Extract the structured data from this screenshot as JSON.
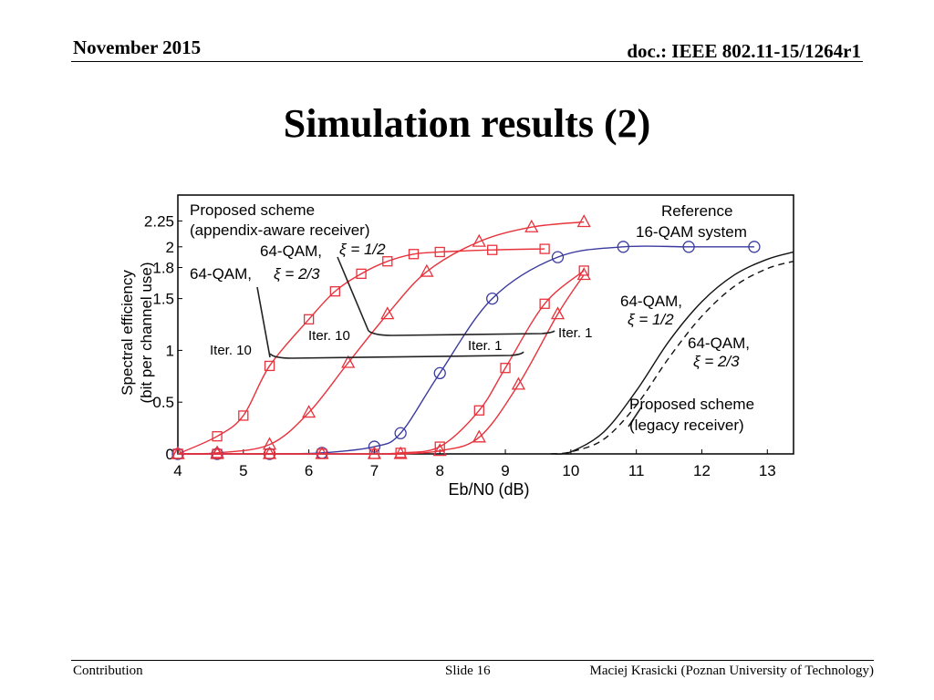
{
  "header": {
    "date": "November 2015",
    "doc": "doc.: IEEE 802.11-15/1264r1"
  },
  "title": "Simulation results (2)",
  "footer": {
    "left": "Contribution",
    "center": "Slide 16",
    "right": "Maciej Krasicki (Poznan University of Technology)"
  },
  "colors": {
    "red": "#e8323c",
    "blue": "#3a3aa0",
    "black": "#111111"
  },
  "chart_data": {
    "type": "line",
    "xlabel": "Eb/N0 (dB)",
    "ylabel_line1": "Spectral efficiency",
    "ylabel_line2": "(bit per channel use)",
    "xlim": [
      4,
      13.4
    ],
    "ylim": [
      0,
      2.5
    ],
    "x_ticks": [
      4,
      5,
      6,
      7,
      8,
      9,
      10,
      11,
      12,
      13
    ],
    "y_ticks": [
      0,
      0.5,
      1,
      1.5,
      1.8,
      2,
      2.25
    ],
    "y_tick_labels": [
      "0",
      "0.5",
      "1",
      "1.5",
      "1.8",
      "2",
      "2.25"
    ],
    "grid": false,
    "series": [
      {
        "color": "red",
        "marker": "square",
        "style": "solid",
        "x": [
          4,
          4.6,
          5,
          5.4,
          6,
          6.4,
          6.8,
          7.2,
          7.6,
          8,
          8.8,
          9.6
        ],
        "y": [
          0,
          0.17,
          0.37,
          0.85,
          1.3,
          1.57,
          1.74,
          1.86,
          1.93,
          1.95,
          1.97,
          1.98
        ]
      },
      {
        "color": "red",
        "marker": "triangle",
        "style": "solid",
        "x": [
          4,
          4.6,
          5.4,
          6,
          6.6,
          7.2,
          7.8,
          8.6,
          9.4,
          10.2
        ],
        "y": [
          0,
          0.01,
          0.09,
          0.4,
          0.88,
          1.35,
          1.76,
          2.05,
          2.19,
          2.24
        ]
      },
      {
        "color": "blue",
        "marker": "circle",
        "style": "solid",
        "x": [
          4,
          4.6,
          5.4,
          6.2,
          7,
          7.4,
          8,
          8.8,
          9.8,
          10.8,
          11.8,
          12.8
        ],
        "y": [
          0,
          0,
          0,
          0.01,
          0.07,
          0.2,
          0.78,
          1.5,
          1.9,
          2,
          2,
          2
        ]
      },
      {
        "color": "red",
        "marker": "square",
        "style": "solid",
        "x": [
          4,
          4.6,
          5.4,
          6.2,
          7,
          7.4,
          8,
          8.6,
          9,
          9.6,
          10.2
        ],
        "y": [
          0,
          0,
          0,
          0,
          0,
          0.01,
          0.07,
          0.42,
          0.83,
          1.45,
          1.77
        ]
      },
      {
        "color": "red",
        "marker": "triangle",
        "style": "solid",
        "x": [
          4,
          4.6,
          5.4,
          6.2,
          7,
          7.4,
          8,
          8.6,
          9.2,
          9.8,
          10.2
        ],
        "y": [
          0,
          0,
          0,
          0,
          0,
          0,
          0.03,
          0.16,
          0.67,
          1.35,
          1.73
        ]
      },
      {
        "color": "black",
        "marker": "none",
        "style": "solid",
        "x": [
          9.7,
          10,
          10.5,
          11,
          11.5,
          12,
          12.5,
          13,
          13.4
        ],
        "y": [
          0,
          0.02,
          0.21,
          0.61,
          1.09,
          1.47,
          1.73,
          1.88,
          1.95
        ]
      },
      {
        "color": "black",
        "marker": "none",
        "style": "dashed",
        "x": [
          9.7,
          10,
          10.5,
          11,
          11.5,
          12,
          12.5,
          13,
          13.4
        ],
        "y": [
          0,
          0.02,
          0.14,
          0.47,
          0.93,
          1.33,
          1.62,
          1.79,
          1.86
        ]
      }
    ],
    "annotations": {
      "proposed_aware_1": "Proposed scheme",
      "proposed_aware_2": "(appendix-aware receiver)",
      "reference_1": "Reference",
      "reference_2": "16-QAM system",
      "qam_half_left": "64-QAM,",
      "xi_half": "ξ = 1/2",
      "qam_twothirds_left": "64-QAM,",
      "xi_twothirds": "ξ = 2/3",
      "iter10_left": "Iter. 10",
      "iter10_mid": "Iter. 10",
      "iter1_mid": "Iter. 1",
      "iter1_right": "Iter. 1",
      "qam_half_right": "64-QAM,",
      "xi_half_right": "ξ = 1/2",
      "qam_twothirds_right": "64-QAM,",
      "xi_twothirds_right": "ξ = 2/3",
      "proposed_legacy_1": "Proposed scheme",
      "proposed_legacy_2": "(legacy receiver)"
    }
  }
}
